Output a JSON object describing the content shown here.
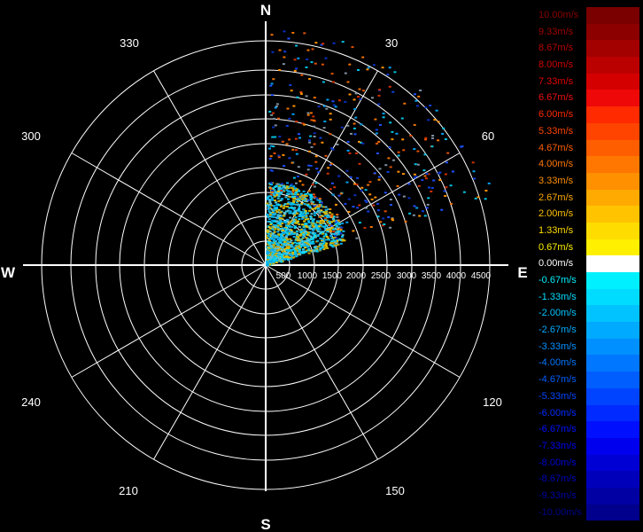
{
  "compass": {
    "north": "N",
    "south": "S",
    "east": "E",
    "west": "W"
  },
  "bearings": [
    "30",
    "60",
    "120",
    "150",
    "210",
    "240",
    "300",
    "330"
  ],
  "range_labels": [
    "500",
    "1000",
    "1500",
    "2000",
    "2500",
    "3000",
    "3500",
    "4000",
    "4500"
  ],
  "legend": [
    {
      "label": "10.00m/s",
      "color": "#7a0000",
      "text_color": "#8b0000"
    },
    {
      "label": "9.33m/s",
      "color": "#8c0000",
      "text_color": "#a00000"
    },
    {
      "label": "8.67m/s",
      "color": "#a30000",
      "text_color": "#b80000"
    },
    {
      "label": "8.00m/s",
      "color": "#bb0000",
      "text_color": "#d00000"
    },
    {
      "label": "7.33m/s",
      "color": "#d40000",
      "text_color": "#e00000"
    },
    {
      "label": "6.67m/s",
      "color": "#ee0808",
      "text_color": "#f01010"
    },
    {
      "label": "6.00m/s",
      "color": "#ff2a00",
      "text_color": "#ff2a00"
    },
    {
      "label": "5.33m/s",
      "color": "#ff4400",
      "text_color": "#ff4400"
    },
    {
      "label": "4.67m/s",
      "color": "#ff5e00",
      "text_color": "#ff5e00"
    },
    {
      "label": "4.00m/s",
      "color": "#ff7700",
      "text_color": "#ff7700"
    },
    {
      "label": "3.33m/s",
      "color": "#ff9000",
      "text_color": "#ff9000"
    },
    {
      "label": "2.67m/s",
      "color": "#ffaa00",
      "text_color": "#ffaa00"
    },
    {
      "label": "2.00m/s",
      "color": "#ffc300",
      "text_color": "#ffc300"
    },
    {
      "label": "1.33m/s",
      "color": "#ffdc00",
      "text_color": "#ffdc00"
    },
    {
      "label": "0.67m/s",
      "color": "#fff000",
      "text_color": "#fff000"
    },
    {
      "label": "0.00m/s",
      "color": "#ffffff",
      "text_color": "#ffffff"
    },
    {
      "label": "-0.67m/s",
      "color": "#00f0ff",
      "text_color": "#00f0ff"
    },
    {
      "label": "-1.33m/s",
      "color": "#00dcff",
      "text_color": "#00dcff"
    },
    {
      "label": "-2.00m/s",
      "color": "#00c3ff",
      "text_color": "#00c3ff"
    },
    {
      "label": "-2.67m/s",
      "color": "#00aaff",
      "text_color": "#00aaff"
    },
    {
      "label": "-3.33m/s",
      "color": "#0090ff",
      "text_color": "#0090ff"
    },
    {
      "label": "-4.00m/s",
      "color": "#0077ff",
      "text_color": "#0077ff"
    },
    {
      "label": "-4.67m/s",
      "color": "#005eff",
      "text_color": "#005eff"
    },
    {
      "label": "-5.33m/s",
      "color": "#0044ff",
      "text_color": "#0044ff"
    },
    {
      "label": "-6.00m/s",
      "color": "#002aff",
      "text_color": "#002aff"
    },
    {
      "label": "-6.67m/s",
      "color": "#0010ff",
      "text_color": "#0010ff"
    },
    {
      "label": "-7.33m/s",
      "color": "#0000ee",
      "text_color": "#0000ee"
    },
    {
      "label": "-8.00m/s",
      "color": "#0000d4",
      "text_color": "#0000d4"
    },
    {
      "label": "-8.67m/s",
      "color": "#0000bb",
      "text_color": "#0000bb"
    },
    {
      "label": "-9.33m/s",
      "color": "#0000a3",
      "text_color": "#0000a3"
    },
    {
      "label": "-10.00m/s",
      "color": "#00008c",
      "text_color": "#00008c"
    }
  ]
}
